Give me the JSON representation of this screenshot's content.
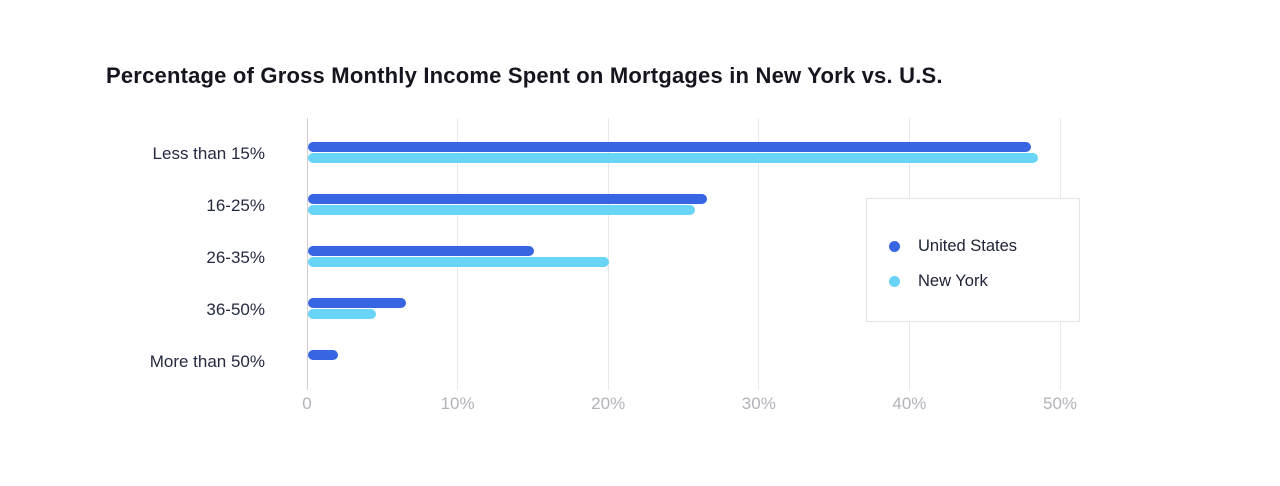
{
  "page": {
    "background_color": "#ffffff"
  },
  "chart_data": {
    "type": "bar",
    "orientation": "horizontal",
    "title": "Percentage of Gross Monthly Income Spent on Mortgages in New York vs. U.S.",
    "categories": [
      "Less than 15%",
      "16-25%",
      "26-35%",
      "36-50%",
      "More than 50%"
    ],
    "series": [
      {
        "name": "United States",
        "color": "#3866e3",
        "values": [
          48,
          26.5,
          15,
          6.5,
          2
        ]
      },
      {
        "name": "New York",
        "color": "#6ad4f6",
        "values": [
          48.5,
          25.7,
          20,
          4.5,
          0
        ]
      }
    ],
    "x_axis": {
      "tick_labels": [
        "0",
        "10%",
        "20%",
        "30%",
        "40%",
        "50%"
      ],
      "tick_values": [
        0,
        10,
        20,
        30,
        40,
        50
      ],
      "min": 0,
      "max": 50
    },
    "grid": true,
    "legend": {
      "position": "middle-right",
      "entries": [
        "United States",
        "New York"
      ]
    },
    "style": {
      "title_color": "#15151f",
      "category_label_color": "#252a41",
      "tick_label_color": "#b2b2ba",
      "gridline_color": "#e8e8eb",
      "axis_line_color": "#cdcdd3",
      "legend_border_color": "#e4e4e8"
    }
  }
}
